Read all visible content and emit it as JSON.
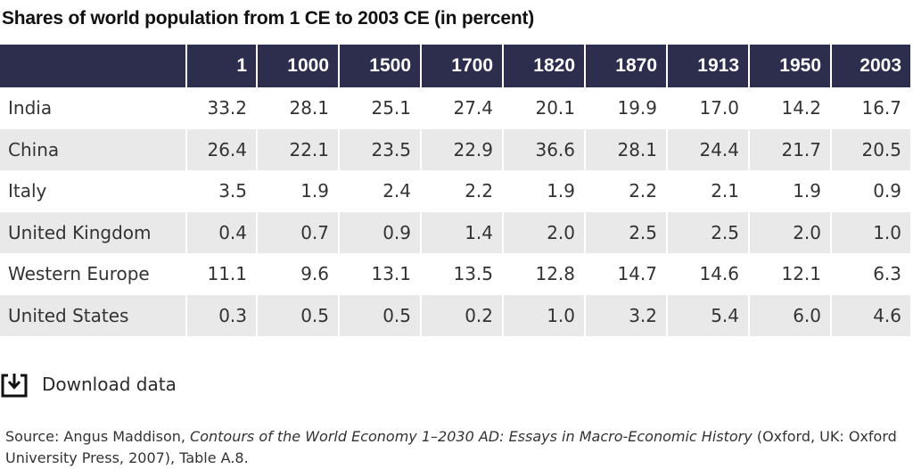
{
  "title": "Shares of world population from 1 CE to 2003 CE (in percent)",
  "download_label": "Download data",
  "source": {
    "prefix": "Source: Angus Maddison, ",
    "book_title": "Contours of the World Economy 1–2030 AD: Essays in Macro-Economic History",
    "suffix": " (Oxford, UK: Oxford University Press, 2007), Table A.8."
  },
  "chart_data": {
    "type": "table",
    "title": "Shares of world population from 1 CE to 2003 CE (in percent)",
    "columns": [
      "1",
      "1000",
      "1500",
      "1700",
      "1820",
      "1870",
      "1913",
      "1950",
      "2003"
    ],
    "rows": [
      {
        "name": "India",
        "values": [
          "33.2",
          "28.1",
          "25.1",
          "27.4",
          "20.1",
          "19.9",
          "17.0",
          "14.2",
          "16.7"
        ]
      },
      {
        "name": "China",
        "values": [
          "26.4",
          "22.1",
          "23.5",
          "22.9",
          "36.6",
          "28.1",
          "24.4",
          "21.7",
          "20.5"
        ]
      },
      {
        "name": "Italy",
        "values": [
          "3.5",
          "1.9",
          "2.4",
          "2.2",
          "1.9",
          "2.2",
          "2.1",
          "1.9",
          "0.9"
        ]
      },
      {
        "name": "United Kingdom",
        "values": [
          "0.4",
          "0.7",
          "0.9",
          "1.4",
          "2.0",
          "2.5",
          "2.5",
          "2.0",
          "1.0"
        ]
      },
      {
        "name": "Western Europe",
        "values": [
          "11.1",
          "9.6",
          "13.1",
          "13.5",
          "12.8",
          "14.7",
          "14.6",
          "12.1",
          "6.3"
        ]
      },
      {
        "name": "United States",
        "values": [
          "0.3",
          "0.5",
          "0.5",
          "0.2",
          "1.0",
          "3.2",
          "5.4",
          "6.0",
          "4.6"
        ]
      }
    ]
  }
}
